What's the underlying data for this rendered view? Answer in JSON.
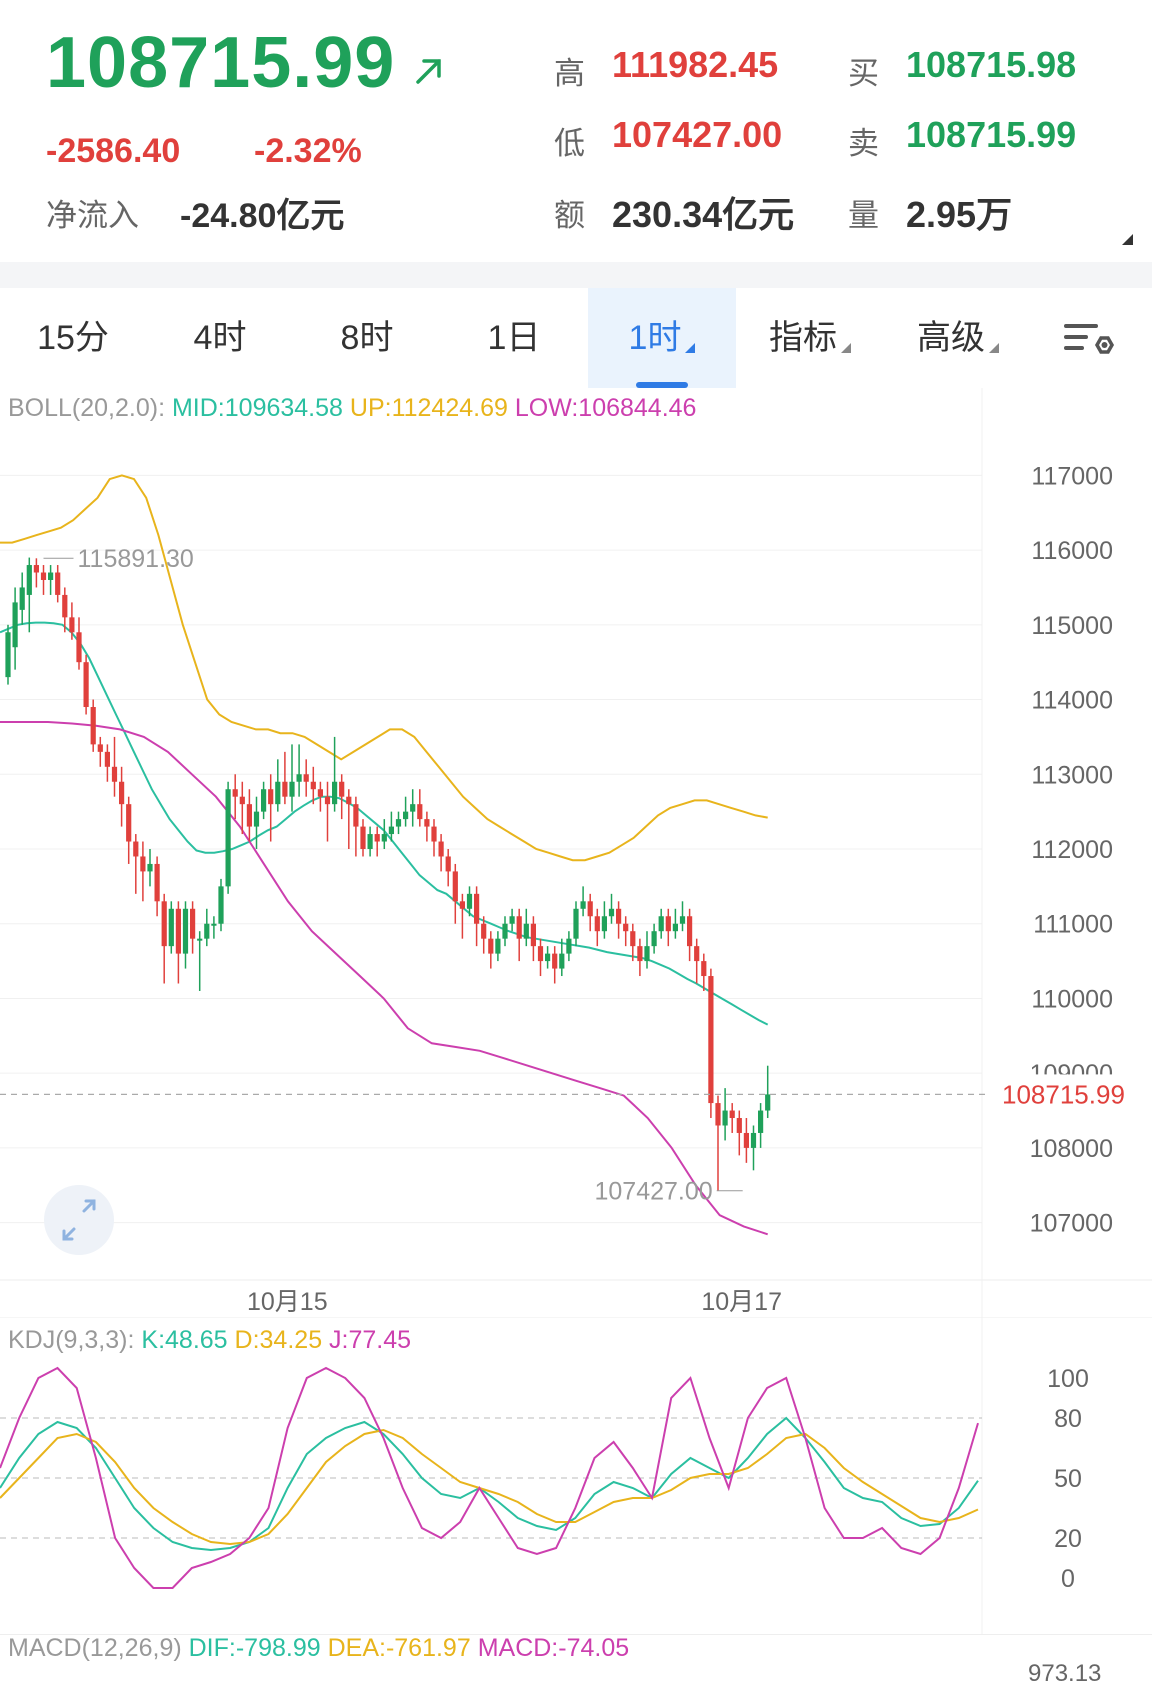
{
  "quote": {
    "last_price": "108715.99",
    "change": "-2586.40",
    "change_pct": "-2.32%",
    "net_inflow_label": "净流入",
    "net_inflow_value": "-24.80亿元",
    "high_label": "高",
    "high_value": "111982.45",
    "low_label": "低",
    "low_value": "107427.00",
    "amount_label": "额",
    "amount_value": "230.34亿元",
    "bid_label": "买",
    "bid_value": "108715.98",
    "ask_label": "卖",
    "ask_value": "108715.99",
    "volume_label": "量",
    "volume_value": "2.95万",
    "colors": {
      "up": "#e0403c",
      "down": "#1fa15a"
    }
  },
  "tabs": [
    {
      "label": "15分"
    },
    {
      "label": "4时"
    },
    {
      "label": "8时"
    },
    {
      "label": "1日"
    },
    {
      "label": "1时",
      "active": true
    },
    {
      "label": "指标"
    },
    {
      "label": "高级"
    }
  ],
  "settings_icon": "chart-settings-icon",
  "expand_icon": "expand-arrows-icon",
  "boll": {
    "name": "BOLL(20,2.0):",
    "mid": "MID:109634.58",
    "up": "UP:112424.69",
    "low": "LOW:106844.46",
    "colors": {
      "mid": "#2bbfa0",
      "up": "#e8b41c",
      "low": "#cc3fae"
    }
  },
  "kdj": {
    "name": "KDJ(9,3,3):",
    "k": "K:48.65",
    "d": "D:34.25",
    "j": "J:77.45"
  },
  "macd": {
    "name": "MACD(12,26,9)",
    "dif": "DIF:-798.99",
    "dea": "DEA:-761.97",
    "macd": "MACD:-74.05",
    "axis_top": "973.13"
  },
  "chart_data": [
    {
      "type": "candlestick",
      "title": "BOLL(20,2.0)",
      "y_ticks": [
        117000,
        116000,
        115000,
        114000,
        113000,
        112000,
        111000,
        110000,
        109000,
        108000,
        107000
      ],
      "ylim": [
        106500,
        117500
      ],
      "x_tick_labels": [
        {
          "label": "10月15",
          "index": 33
        },
        {
          "label": "10月17",
          "index": 97
        }
      ],
      "current_price": 108715.99,
      "current_price_label": "108715.99",
      "max_label": {
        "value": 115891.3,
        "label": "115891.30",
        "index": 5
      },
      "min_label": {
        "value": 107427.0,
        "label": "107427.00",
        "index": 97
      },
      "candles": [
        [
          114300,
          114900,
          114200,
          115000
        ],
        [
          114700,
          115300,
          114400,
          115500
        ],
        [
          115200,
          115500,
          115000,
          115700
        ],
        [
          115400,
          115800,
          114900,
          115900
        ],
        [
          115800,
          115700,
          115500,
          115890
        ],
        [
          115700,
          115600,
          115400,
          115800
        ],
        [
          115600,
          115700,
          115400,
          115800
        ],
        [
          115700,
          115400,
          115300,
          115800
        ],
        [
          115400,
          115100,
          114900,
          115500
        ],
        [
          115100,
          114900,
          114800,
          115300
        ],
        [
          114900,
          114500,
          114400,
          115100
        ],
        [
          114500,
          113900,
          113800,
          114600
        ],
        [
          113900,
          113400,
          113300,
          114000
        ],
        [
          113400,
          113300,
          113100,
          113500
        ],
        [
          113300,
          113100,
          112900,
          113400
        ],
        [
          113100,
          112900,
          112700,
          113500
        ],
        [
          112900,
          112600,
          112300,
          113100
        ],
        [
          112600,
          112100,
          111800,
          112700
        ],
        [
          112100,
          111900,
          111400,
          112200
        ],
        [
          111900,
          111700,
          111300,
          112100
        ],
        [
          111700,
          111800,
          111500,
          112000
        ],
        [
          111800,
          111300,
          111100,
          111900
        ],
        [
          111300,
          110700,
          110200,
          111400
        ],
        [
          110700,
          111200,
          110600,
          111300
        ],
        [
          111200,
          110600,
          110200,
          111300
        ],
        [
          110600,
          111200,
          110400,
          111300
        ],
        [
          111200,
          110800,
          110600,
          111300
        ],
        [
          110800,
          110800,
          110100,
          110900
        ],
        [
          110800,
          111000,
          110700,
          111200
        ],
        [
          111000,
          111000,
          110800,
          111100
        ],
        [
          111000,
          111500,
          110900,
          111600
        ],
        [
          111500,
          112800,
          111400,
          112900
        ],
        [
          112800,
          112700,
          112400,
          113000
        ],
        [
          112700,
          112600,
          112200,
          112900
        ],
        [
          112600,
          112300,
          112100,
          112800
        ],
        [
          112300,
          112500,
          112000,
          112700
        ],
        [
          112500,
          112800,
          112400,
          112900
        ],
        [
          112800,
          112600,
          112100,
          113000
        ],
        [
          112600,
          112900,
          112500,
          113200
        ],
        [
          112900,
          112700,
          112600,
          113300
        ],
        [
          112700,
          112900,
          112500,
          113400
        ],
        [
          112900,
          113000,
          112700,
          113400
        ],
        [
          113000,
          112900,
          112700,
          113200
        ],
        [
          112900,
          112800,
          112600,
          113100
        ],
        [
          112800,
          112700,
          112500,
          112900
        ],
        [
          112700,
          112600,
          112100,
          112900
        ],
        [
          112600,
          112900,
          112500,
          113500
        ],
        [
          112900,
          112700,
          112400,
          113000
        ],
        [
          112700,
          112600,
          112000,
          112800
        ],
        [
          112600,
          112300,
          111900,
          112700
        ],
        [
          112300,
          112000,
          111900,
          112400
        ],
        [
          112000,
          112200,
          111900,
          112300
        ],
        [
          112200,
          112100,
          111900,
          112300
        ],
        [
          112100,
          112200,
          112000,
          112400
        ],
        [
          112200,
          112300,
          112100,
          112500
        ],
        [
          112300,
          112400,
          112200,
          112500
        ],
        [
          112400,
          112500,
          112300,
          112700
        ],
        [
          112500,
          112600,
          112300,
          112800
        ],
        [
          112600,
          112400,
          112300,
          112800
        ],
        [
          112400,
          112300,
          112100,
          112500
        ],
        [
          112300,
          112100,
          111900,
          112400
        ],
        [
          112100,
          111900,
          111700,
          112200
        ],
        [
          111900,
          111700,
          111500,
          112000
        ],
        [
          111700,
          111300,
          111000,
          111800
        ],
        [
          111300,
          111200,
          110800,
          111400
        ],
        [
          111200,
          111400,
          111100,
          111500
        ],
        [
          111400,
          111000,
          110700,
          111500
        ],
        [
          111000,
          110800,
          110600,
          111100
        ],
        [
          110800,
          110600,
          110400,
          110900
        ],
        [
          110600,
          110800,
          110500,
          110900
        ],
        [
          110800,
          111000,
          110700,
          111100
        ],
        [
          111000,
          111100,
          110900,
          111200
        ],
        [
          111100,
          110800,
          110500,
          111200
        ],
        [
          110800,
          111000,
          110700,
          111200
        ],
        [
          111000,
          110700,
          110500,
          111100
        ],
        [
          110700,
          110500,
          110300,
          110800
        ],
        [
          110500,
          110600,
          110400,
          110700
        ],
        [
          110600,
          110400,
          110200,
          110700
        ],
        [
          110400,
          110600,
          110300,
          110800
        ],
        [
          110600,
          110800,
          110500,
          110900
        ],
        [
          110800,
          111200,
          110700,
          111300
        ],
        [
          111200,
          111300,
          111100,
          111500
        ],
        [
          111300,
          111100,
          110900,
          111400
        ],
        [
          111100,
          110900,
          110700,
          111200
        ],
        [
          110900,
          111100,
          110800,
          111300
        ],
        [
          111100,
          111200,
          111000,
          111400
        ],
        [
          111200,
          111000,
          110800,
          111300
        ],
        [
          111000,
          110900,
          110700,
          111100
        ],
        [
          110900,
          110700,
          110500,
          111000
        ],
        [
          110700,
          110500,
          110300,
          110800
        ],
        [
          110500,
          110700,
          110400,
          110900
        ],
        [
          110700,
          110900,
          110600,
          111000
        ],
        [
          110900,
          111100,
          110800,
          111200
        ],
        [
          111100,
          110900,
          110700,
          111200
        ],
        [
          110900,
          111000,
          110800,
          111200
        ],
        [
          111000,
          111100,
          110900,
          111300
        ],
        [
          111100,
          110700,
          110500,
          111200
        ],
        [
          110700,
          110500,
          110200,
          110800
        ],
        [
          110500,
          110300,
          110100,
          110600
        ],
        [
          110300,
          108600,
          108400,
          110400
        ],
        [
          108600,
          108300,
          107427,
          108700
        ],
        [
          108300,
          108500,
          108100,
          108800
        ],
        [
          108500,
          108400,
          108200,
          108600
        ],
        [
          108400,
          108200,
          107900,
          108500
        ],
        [
          108200,
          108000,
          107800,
          108400
        ],
        [
          108000,
          108200,
          107700,
          108300
        ],
        [
          108200,
          108500,
          108000,
          108600
        ],
        [
          108500,
          108716,
          108400,
          109100
        ]
      ],
      "series": [
        {
          "name": "MID",
          "values": [
            114900,
            114950,
            115000,
            115020,
            115030,
            115030,
            115020,
            115000,
            114900,
            114750,
            114550,
            114300,
            114050,
            113800,
            113550,
            113300,
            113050,
            112800,
            112600,
            112400,
            112250,
            112100,
            111980,
            111950,
            111950,
            111970,
            112000,
            112050,
            112100,
            112180,
            112250,
            112300,
            112400,
            112500,
            112580,
            112650,
            112700,
            112700,
            112680,
            112620,
            112550,
            112450,
            112350,
            112250,
            112100,
            111950,
            111800,
            111650,
            111550,
            111450,
            111400,
            111300,
            111200,
            111100,
            111050,
            111000,
            110950,
            110900,
            110860,
            110820,
            110800,
            110780,
            110760,
            110740,
            110720,
            110700,
            110680,
            110650,
            110620,
            110600,
            110580,
            110560,
            110540,
            110500,
            110450,
            110400,
            110330,
            110260,
            110200,
            110130,
            110060,
            109990,
            109920,
            109850,
            109780,
            109710,
            109650
          ]
        },
        {
          "name": "UP",
          "values": [
            116100,
            116100,
            116150,
            116200,
            116250,
            116300,
            116400,
            116550,
            116700,
            116950,
            117000,
            116950,
            116700,
            116200,
            115600,
            115000,
            114500,
            114000,
            113800,
            113700,
            113650,
            113600,
            113600,
            113550,
            113550,
            113500,
            113400,
            113300,
            113200,
            113300,
            113400,
            113500,
            113600,
            113600,
            113500,
            113300,
            113100,
            112900,
            112700,
            112550,
            112400,
            112300,
            112200,
            112100,
            112000,
            111950,
            111900,
            111850,
            111850,
            111900,
            111950,
            112050,
            112150,
            112300,
            112450,
            112550,
            112600,
            112650,
            112650,
            112600,
            112550,
            112500,
            112450,
            112420
          ]
        },
        {
          "name": "LOW",
          "values": [
            113700,
            113700,
            113700,
            113680,
            113650,
            113600,
            113500,
            113300,
            113000,
            112700,
            112300,
            111800,
            111300,
            110900,
            110600,
            110300,
            110000,
            109600,
            109400,
            109350,
            109300,
            109200,
            109100,
            109000,
            108900,
            108800,
            108700,
            108400,
            108000,
            107500,
            107100,
            106950,
            106844
          ]
        }
      ],
      "y_label": "",
      "x_label": ""
    },
    {
      "type": "line",
      "title": "KDJ(9,3,3)",
      "y_ticks": [
        100,
        80,
        50,
        20,
        0
      ],
      "ylim": [
        -10,
        110
      ],
      "series": [
        {
          "name": "K",
          "values": [
            45,
            60,
            72,
            78,
            75,
            65,
            50,
            35,
            25,
            18,
            15,
            14,
            15,
            18,
            25,
            45,
            62,
            70,
            75,
            78,
            72,
            62,
            50,
            42,
            40,
            45,
            38,
            30,
            26,
            24,
            30,
            42,
            48,
            45,
            40,
            52,
            60,
            55,
            50,
            60,
            72,
            80,
            70,
            58,
            45,
            40,
            38,
            30,
            26,
            27,
            35,
            48.65
          ]
        },
        {
          "name": "D",
          "values": [
            40,
            50,
            60,
            70,
            72,
            68,
            58,
            45,
            35,
            28,
            22,
            18,
            17,
            18,
            22,
            32,
            45,
            58,
            66,
            72,
            74,
            70,
            62,
            55,
            48,
            45,
            42,
            38,
            32,
            28,
            28,
            33,
            38,
            40,
            40,
            44,
            50,
            52,
            52,
            55,
            62,
            70,
            72,
            65,
            55,
            48,
            42,
            36,
            30,
            28,
            30,
            34.25
          ]
        },
        {
          "name": "J",
          "values": [
            55,
            80,
            100,
            105,
            95,
            60,
            20,
            5,
            -5,
            -5,
            5,
            8,
            12,
            20,
            35,
            75,
            100,
            105,
            100,
            90,
            70,
            45,
            25,
            20,
            28,
            45,
            30,
            15,
            12,
            15,
            35,
            60,
            68,
            55,
            40,
            90,
            100,
            70,
            45,
            80,
            95,
            100,
            70,
            35,
            20,
            20,
            25,
            15,
            12,
            20,
            45,
            77.45
          ]
        }
      ],
      "y_label": "",
      "x_label": ""
    }
  ]
}
